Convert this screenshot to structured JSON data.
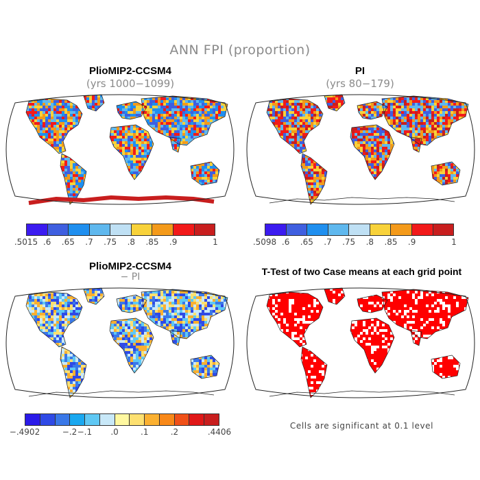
{
  "figure_title": "ANN FPI (proportion)",
  "panels": [
    {
      "title": "PlioMIP2-CCSM4",
      "subtitle": "(yrs 1000−1099)"
    },
    {
      "title": "PI",
      "subtitle": "(yrs 80−179)"
    },
    {
      "title": "PlioMIP2-CCSM4",
      "subtitle": "− PI"
    },
    {
      "title": "T-Test of two Case means at each grid point",
      "subtitle": ""
    }
  ],
  "colorbars": {
    "top_left": {
      "colors": [
        "#3b1bf0",
        "#3f5fe0",
        "#1f8fef",
        "#5fb8ee",
        "#bfe0f4",
        "#f8d23a",
        "#f49a1a",
        "#f21a1a",
        "#c81e1e"
      ],
      "ticks": [
        ".5015",
        ".6",
        ".65",
        ".7",
        ".75",
        ".8",
        ".85",
        ".9",
        "",
        "1"
      ]
    },
    "top_right": {
      "colors": [
        "#3b1bf0",
        "#3f5fe0",
        "#1f8fef",
        "#5fb8ee",
        "#bfe0f4",
        "#f8d23a",
        "#f49a1a",
        "#f21a1a",
        "#c81e1e"
      ],
      "ticks": [
        ".5098",
        ".6",
        ".65",
        ".7",
        ".75",
        ".8",
        ".85",
        ".9",
        "",
        "1"
      ]
    },
    "diff": {
      "colors": [
        "#2a1ae8",
        "#2f4ae6",
        "#3a78e8",
        "#1aa8f0",
        "#5fc8f4",
        "#c8e8f8",
        "#fff8a0",
        "#fde070",
        "#fbb030",
        "#f88818",
        "#f05018",
        "#e01818",
        "#c81e1e"
      ],
      "ticks": [
        "−.4902",
        "−.2",
        "−.1",
        ".0",
        ".1",
        ".2",
        ".4406"
      ]
    }
  },
  "significance_note": "Cells are significant at 0.1 level",
  "map_colors": {
    "top_left": [
      "#1f8fef",
      "#f49a1a",
      "#f8d23a",
      "#3f5fe0",
      "#f21a1a",
      "#5fb8ee"
    ],
    "top_right": [
      "#f21a1a",
      "#c81e1e",
      "#f49a1a",
      "#3f5fe0",
      "#5fb8ee",
      "#f8d23a"
    ],
    "diff": [
      "#5fc8f4",
      "#fde070",
      "#3a78e8",
      "#fbb030",
      "#c8e8f8",
      "#2f4ae6"
    ],
    "ttest": [
      "#ff0000"
    ]
  },
  "map_regions": {
    "top_left": {
      "antarctica_coast": "#c81e1e"
    },
    "top_right": {
      "antarctica_coast": "none"
    }
  }
}
